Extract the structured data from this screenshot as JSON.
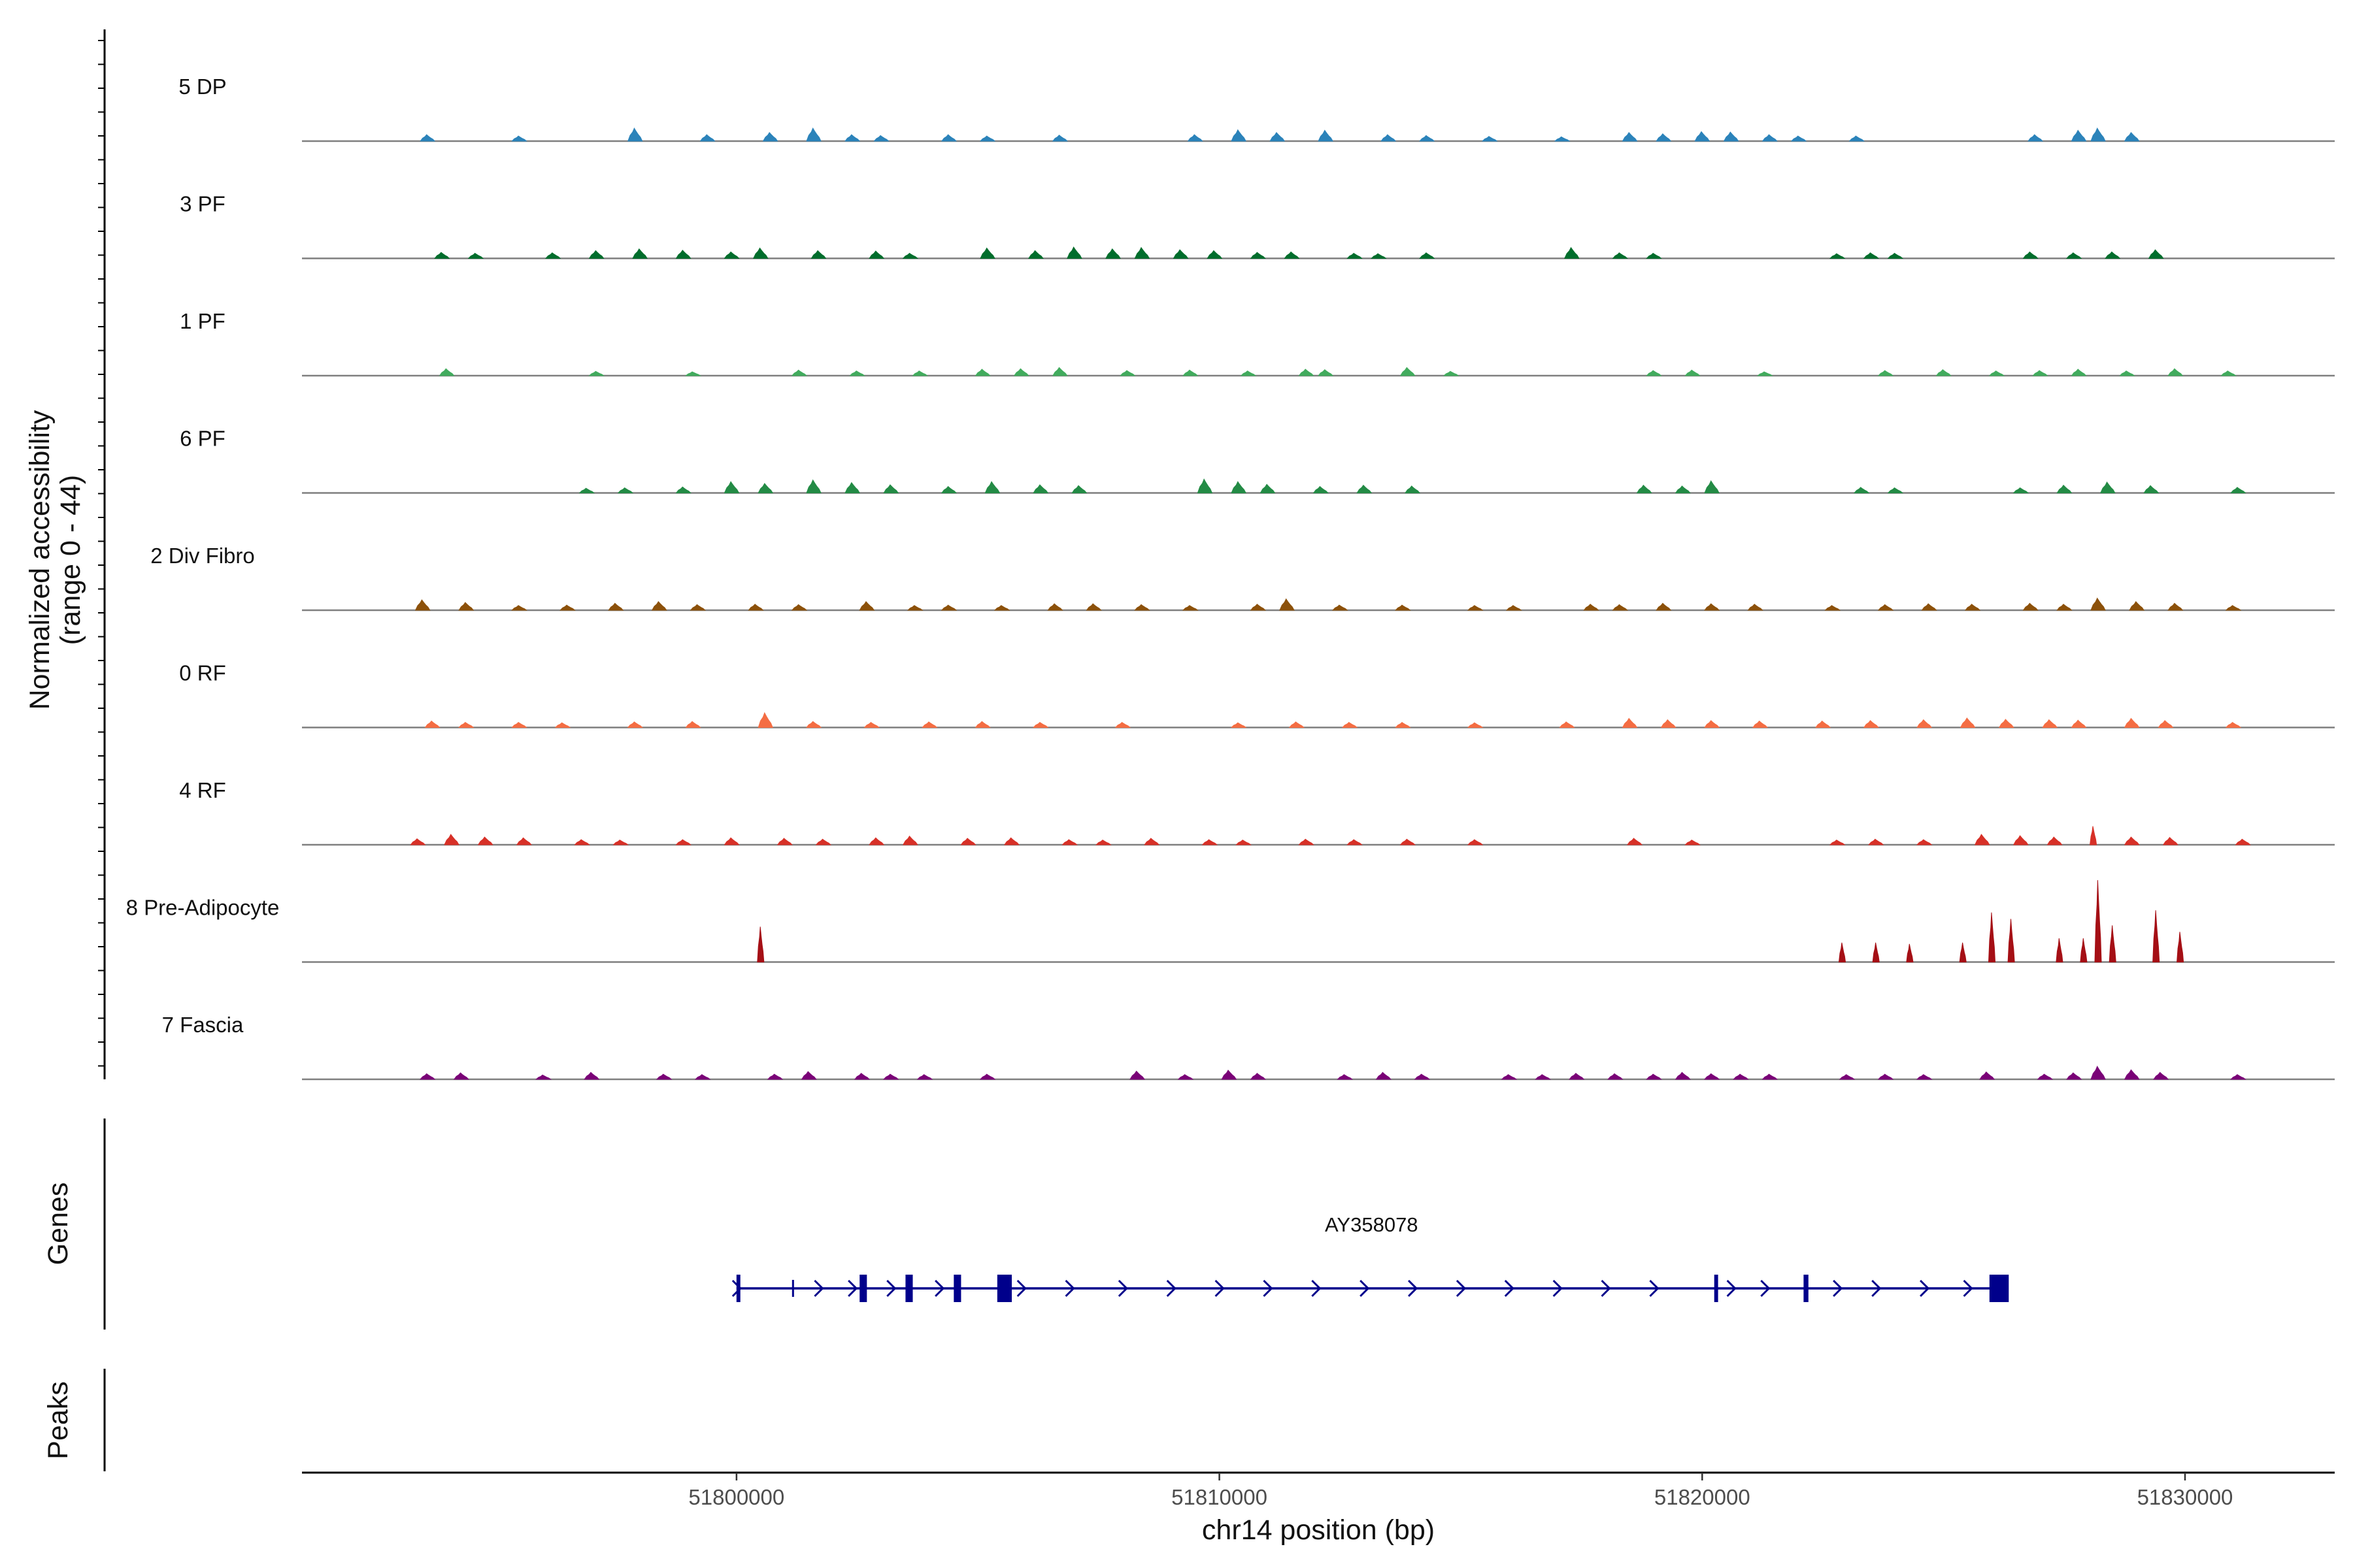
{
  "chart_data": {
    "type": "area",
    "title": "",
    "chromosome": "chr14",
    "ylabel": "Normalized accessibility",
    "ylabel_range": "(range 0 - 44)",
    "y_range": [
      0,
      44
    ],
    "xlabel": "chr14 position (bp)",
    "x_range": [
      51791000,
      51833100
    ],
    "x_ticks": [
      51800000,
      51810000,
      51820000,
      51830000
    ],
    "tracks": [
      {
        "name": "5 DP",
        "color": "#2b83ba",
        "peaks": [
          [
            51793600,
            1.5
          ],
          [
            51795500,
            1.2
          ],
          [
            51797900,
            3
          ],
          [
            51799400,
            1.5
          ],
          [
            51800700,
            2
          ],
          [
            51801600,
            3
          ],
          [
            51802400,
            1.5
          ],
          [
            51803000,
            1.3
          ],
          [
            51804400,
            1.5
          ],
          [
            51805200,
            1.2
          ],
          [
            51806700,
            1.4
          ],
          [
            51809500,
            1.5
          ],
          [
            51810400,
            2.6
          ],
          [
            51811200,
            2
          ],
          [
            51812200,
            2.5
          ],
          [
            51813500,
            1.5
          ],
          [
            51814300,
            1.3
          ],
          [
            51815600,
            1.1
          ],
          [
            51817100,
            1
          ],
          [
            51818500,
            2
          ],
          [
            51819200,
            1.7
          ],
          [
            51820000,
            2.2
          ],
          [
            51820600,
            2.1
          ],
          [
            51821400,
            1.5
          ],
          [
            51822000,
            1.2
          ],
          [
            51823200,
            1.2
          ],
          [
            51826900,
            1.5
          ],
          [
            51827800,
            2.5
          ],
          [
            51828200,
            3
          ],
          [
            51828900,
            2
          ]
        ]
      },
      {
        "name": "3 PF",
        "color": "#006d2c",
        "peaks": [
          [
            51793900,
            1.4
          ],
          [
            51794600,
            1.2
          ],
          [
            51796200,
            1.3
          ],
          [
            51797100,
            1.8
          ],
          [
            51798000,
            2.2
          ],
          [
            51798900,
            1.9
          ],
          [
            51799900,
            1.5
          ],
          [
            51800500,
            2.4
          ],
          [
            51801700,
            1.8
          ],
          [
            51802900,
            1.7
          ],
          [
            51803600,
            1.2
          ],
          [
            51805200,
            2.4
          ],
          [
            51806200,
            1.8
          ],
          [
            51807000,
            2.6
          ],
          [
            51807800,
            2.2
          ],
          [
            51808400,
            2.5
          ],
          [
            51809200,
            2
          ],
          [
            51809900,
            1.8
          ],
          [
            51810800,
            1.4
          ],
          [
            51811500,
            1.5
          ],
          [
            51812800,
            1.2
          ],
          [
            51813300,
            1.1
          ],
          [
            51814300,
            1.3
          ],
          [
            51817300,
            2.5
          ],
          [
            51818300,
            1.3
          ],
          [
            51819000,
            1.2
          ],
          [
            51822800,
            1.1
          ],
          [
            51823500,
            1.3
          ],
          [
            51824000,
            1.2
          ],
          [
            51826800,
            1.5
          ],
          [
            51827700,
            1.3
          ],
          [
            51828500,
            1.5
          ],
          [
            51829400,
            2
          ]
        ]
      },
      {
        "name": "1 PF",
        "color": "#41ab5d",
        "peaks": [
          [
            51794000,
            1.6
          ],
          [
            51797100,
            1
          ],
          [
            51799100,
            0.9
          ],
          [
            51801300,
            1.3
          ],
          [
            51802500,
            1.1
          ],
          [
            51803800,
            1.1
          ],
          [
            51805100,
            1.5
          ],
          [
            51805900,
            1.6
          ],
          [
            51806700,
            1.9
          ],
          [
            51808100,
            1.2
          ],
          [
            51809400,
            1.3
          ],
          [
            51810600,
            1.1
          ],
          [
            51811800,
            1.5
          ],
          [
            51812200,
            1.4
          ],
          [
            51813900,
            1.9
          ],
          [
            51814800,
            1
          ],
          [
            51819000,
            1.2
          ],
          [
            51819800,
            1.3
          ],
          [
            51821300,
            0.9
          ],
          [
            51823800,
            1.2
          ],
          [
            51825000,
            1.4
          ],
          [
            51826100,
            1.1
          ],
          [
            51827000,
            1.2
          ],
          [
            51827800,
            1.5
          ],
          [
            51828800,
            1.1
          ],
          [
            51829800,
            1.6
          ],
          [
            51830900,
            1.1
          ]
        ]
      },
      {
        "name": "6 PF",
        "color": "#238b45",
        "peaks": [
          [
            51796900,
            1.1
          ],
          [
            51797700,
            1.2
          ],
          [
            51798900,
            1.4
          ],
          [
            51799900,
            2.6
          ],
          [
            51800600,
            2.2
          ],
          [
            51801600,
            3
          ],
          [
            51802400,
            2.4
          ],
          [
            51803200,
            1.9
          ],
          [
            51804400,
            1.5
          ],
          [
            51805300,
            2.6
          ],
          [
            51806300,
            1.9
          ],
          [
            51807100,
            1.7
          ],
          [
            51809700,
            3.2
          ],
          [
            51810400,
            2.6
          ],
          [
            51811000,
            2
          ],
          [
            51812100,
            1.5
          ],
          [
            51813000,
            1.8
          ],
          [
            51814000,
            1.6
          ],
          [
            51818800,
            1.8
          ],
          [
            51819600,
            1.6
          ],
          [
            51820200,
            2.8
          ],
          [
            51823300,
            1.3
          ],
          [
            51824000,
            1.2
          ],
          [
            51826600,
            1.2
          ],
          [
            51827500,
            1.8
          ],
          [
            51828400,
            2.5
          ],
          [
            51829300,
            1.7
          ],
          [
            51831100,
            1.3
          ]
        ]
      },
      {
        "name": "2 Div Fibro",
        "color": "#8c510a",
        "peaks": [
          [
            51793500,
            2.4
          ],
          [
            51794400,
            1.8
          ],
          [
            51795500,
            1.1
          ],
          [
            51796500,
            1.2
          ],
          [
            51797500,
            1.6
          ],
          [
            51798400,
            2
          ],
          [
            51799200,
            1.3
          ],
          [
            51800400,
            1.4
          ],
          [
            51801300,
            1.3
          ],
          [
            51802700,
            2
          ],
          [
            51803700,
            1.1
          ],
          [
            51804400,
            1.2
          ],
          [
            51805500,
            1.1
          ],
          [
            51806600,
            1.5
          ],
          [
            51807400,
            1.5
          ],
          [
            51808400,
            1.3
          ],
          [
            51809400,
            1.1
          ],
          [
            51810800,
            1.4
          ],
          [
            51811400,
            2.6
          ],
          [
            51812500,
            1.2
          ],
          [
            51813800,
            1.2
          ],
          [
            51815300,
            1.1
          ],
          [
            51816100,
            1.1
          ],
          [
            51817700,
            1.4
          ],
          [
            51818300,
            1.3
          ],
          [
            51819200,
            1.6
          ],
          [
            51820200,
            1.5
          ],
          [
            51821100,
            1.4
          ],
          [
            51822700,
            1.1
          ],
          [
            51823800,
            1.3
          ],
          [
            51824700,
            1.5
          ],
          [
            51825600,
            1.4
          ],
          [
            51826800,
            1.6
          ],
          [
            51827500,
            1.4
          ],
          [
            51828200,
            2.8
          ],
          [
            51829000,
            2
          ],
          [
            51829800,
            1.6
          ],
          [
            51831000,
            1.1
          ]
        ]
      },
      {
        "name": "0 RF",
        "color": "#f46d43",
        "peaks": [
          [
            51793700,
            1.5
          ],
          [
            51794400,
            1.2
          ],
          [
            51795500,
            1.2
          ],
          [
            51796400,
            1.1
          ],
          [
            51797900,
            1.3
          ],
          [
            51799100,
            1.4
          ],
          [
            51800600,
            3.4
          ],
          [
            51801600,
            1.4
          ],
          [
            51802800,
            1.2
          ],
          [
            51804000,
            1.3
          ],
          [
            51805100,
            1.4
          ],
          [
            51806300,
            1.2
          ],
          [
            51808000,
            1.2
          ],
          [
            51810400,
            1.1
          ],
          [
            51811600,
            1.3
          ],
          [
            51812700,
            1.2
          ],
          [
            51813800,
            1.2
          ],
          [
            51815300,
            1.1
          ],
          [
            51817200,
            1.3
          ],
          [
            51818500,
            2.1
          ],
          [
            51819300,
            1.8
          ],
          [
            51820200,
            1.6
          ],
          [
            51821200,
            1.5
          ],
          [
            51822500,
            1.5
          ],
          [
            51823500,
            1.6
          ],
          [
            51824600,
            1.8
          ],
          [
            51825500,
            2.2
          ],
          [
            51826300,
            1.9
          ],
          [
            51827200,
            1.8
          ],
          [
            51827800,
            1.7
          ],
          [
            51828900,
            2.1
          ],
          [
            51829600,
            1.6
          ],
          [
            51831000,
            1.2
          ]
        ]
      },
      {
        "name": "4 RF",
        "color": "#d73027",
        "peaks": [
          [
            51793400,
            1.4
          ],
          [
            51794100,
            2.4
          ],
          [
            51794800,
            1.8
          ],
          [
            51795600,
            1.6
          ],
          [
            51796800,
            1.2
          ],
          [
            51797600,
            1.1
          ],
          [
            51798900,
            1.2
          ],
          [
            51799900,
            1.6
          ],
          [
            51801000,
            1.5
          ],
          [
            51801800,
            1.3
          ],
          [
            51802900,
            1.6
          ],
          [
            51803600,
            2
          ],
          [
            51804800,
            1.5
          ],
          [
            51805700,
            1.6
          ],
          [
            51806900,
            1.2
          ],
          [
            51807600,
            1.1
          ],
          [
            51808600,
            1.5
          ],
          [
            51809800,
            1.2
          ],
          [
            51810500,
            1.1
          ],
          [
            51811800,
            1.3
          ],
          [
            51812800,
            1.2
          ],
          [
            51813900,
            1.3
          ],
          [
            51815300,
            1.2
          ],
          [
            51818600,
            1.5
          ],
          [
            51819800,
            1.1
          ],
          [
            51822800,
            1.1
          ],
          [
            51823600,
            1.3
          ],
          [
            51824600,
            1.2
          ],
          [
            51825800,
            2.4
          ],
          [
            51826600,
            2.1
          ],
          [
            51827300,
            1.8
          ],
          [
            51828100,
            4.3
          ],
          [
            51828900,
            1.8
          ],
          [
            51829700,
            1.7
          ],
          [
            51831200,
            1.3
          ]
        ]
      },
      {
        "name": "8 Pre-Adipocyte",
        "color": "#a50f15",
        "peaks": [
          [
            51800500,
            8.2
          ],
          [
            51822900,
            4.5
          ],
          [
            51823600,
            4.5
          ],
          [
            51824300,
            4.2
          ],
          [
            51825400,
            4.5
          ],
          [
            51826000,
            11.5
          ],
          [
            51826400,
            10
          ],
          [
            51827400,
            5.5
          ],
          [
            51827900,
            5.5
          ],
          [
            51828200,
            19
          ],
          [
            51828500,
            8.5
          ],
          [
            51829400,
            12
          ],
          [
            51829900,
            7
          ]
        ]
      },
      {
        "name": "7 Fascia",
        "color": "#7a0177",
        "peaks": [
          [
            51793600,
            1.3
          ],
          [
            51794300,
            1.5
          ],
          [
            51796000,
            1
          ],
          [
            51797000,
            1.6
          ],
          [
            51798500,
            1.2
          ],
          [
            51799300,
            1.1
          ],
          [
            51800800,
            1.2
          ],
          [
            51801500,
            1.8
          ],
          [
            51802600,
            1.4
          ],
          [
            51803200,
            1.2
          ],
          [
            51803900,
            1.1
          ],
          [
            51805200,
            1.2
          ],
          [
            51808300,
            1.9
          ],
          [
            51809300,
            1.1
          ],
          [
            51810200,
            2.1
          ],
          [
            51810800,
            1.4
          ],
          [
            51812600,
            1.1
          ],
          [
            51813400,
            1.6
          ],
          [
            51814200,
            1.2
          ],
          [
            51816000,
            1.1
          ],
          [
            51816700,
            1.1
          ],
          [
            51817400,
            1.4
          ],
          [
            51818200,
            1.3
          ],
          [
            51819000,
            1.2
          ],
          [
            51819600,
            1.6
          ],
          [
            51820200,
            1.3
          ],
          [
            51820800,
            1.2
          ],
          [
            51821400,
            1.2
          ],
          [
            51823000,
            1.1
          ],
          [
            51823800,
            1.2
          ],
          [
            51824600,
            1.1
          ],
          [
            51825900,
            1.7
          ],
          [
            51827100,
            1.2
          ],
          [
            51827700,
            1.5
          ],
          [
            51828200,
            3
          ],
          [
            51828900,
            2.2
          ],
          [
            51829500,
            1.6
          ],
          [
            51831100,
            1.1
          ]
        ]
      }
    ],
    "genes_label": "Genes",
    "peaks_label": "Peaks",
    "gene": {
      "name": "AY358078",
      "strand": "+",
      "start": 51800000,
      "end": 51826300,
      "exons": [
        [
          51800000,
          51800080
        ],
        [
          51801150,
          51801170
        ],
        [
          51802550,
          51802700
        ],
        [
          51803500,
          51803650
        ],
        [
          51804500,
          51804650
        ],
        [
          51805400,
          51805700
        ],
        [
          51820250,
          51820330
        ],
        [
          51822100,
          51822200
        ],
        [
          51825950,
          51826350
        ]
      ],
      "arrows": [
        51800000,
        51801700,
        51802400,
        51803200,
        51804200,
        51805900,
        51806900,
        51808000,
        51809000,
        51810000,
        51811000,
        51812000,
        51813000,
        51814000,
        51815000,
        51816000,
        51817000,
        51818000,
        51819000,
        51820600,
        51821300,
        51822800,
        51823600,
        51824600,
        51825500
      ]
    }
  }
}
